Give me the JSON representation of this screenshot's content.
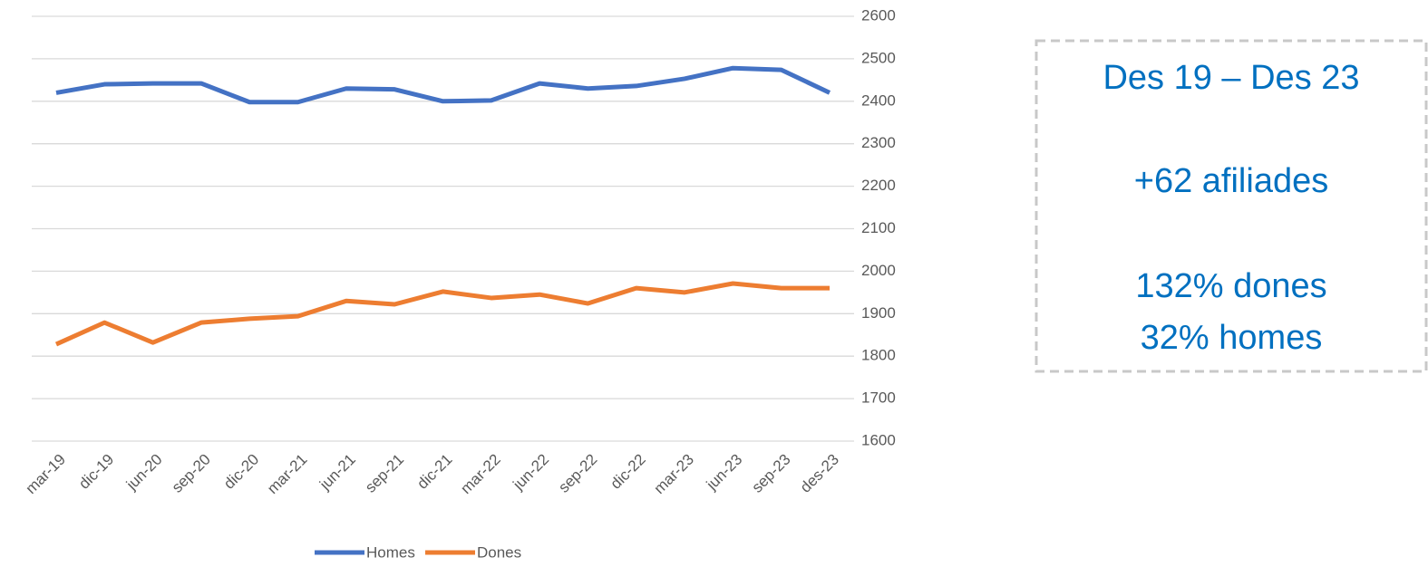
{
  "chart_data": {
    "type": "line",
    "categories": [
      "mar-19",
      "dic-19",
      "jun-20",
      "sep-20",
      "dic-20",
      "mar-21",
      "jun-21",
      "sep-21",
      "dic-21",
      "mar-22",
      "jun-22",
      "sep-22",
      "dic-22",
      "mar-23",
      "jun-23",
      "sep-23",
      "des-23"
    ],
    "series": [
      {
        "name": "Homes",
        "color": "#4472c4",
        "values": [
          2420,
          2440,
          2442,
          2442,
          2398,
          2398,
          2430,
          2428,
          2400,
          2402,
          2442,
          2430,
          2436,
          2453,
          2478,
          2474,
          2420
        ]
      },
      {
        "name": "Dones",
        "color": "#ed7d31",
        "values": [
          1828,
          1879,
          1832,
          1879,
          1888,
          1894,
          1930,
          1922,
          1952,
          1937,
          1945,
          1924,
          1960,
          1950,
          1971,
          1960,
          1960
        ]
      }
    ],
    "ylim": [
      1600,
      2600
    ],
    "yticks": [
      1600,
      1700,
      1800,
      1900,
      2000,
      2100,
      2200,
      2300,
      2400,
      2500,
      2600
    ],
    "y_axis_side": "right",
    "grid": true,
    "legend": "bottom",
    "annotations": [
      "Des 19 – Des 23",
      "+62 afiliades",
      "132% dones",
      "32% homes"
    ]
  }
}
